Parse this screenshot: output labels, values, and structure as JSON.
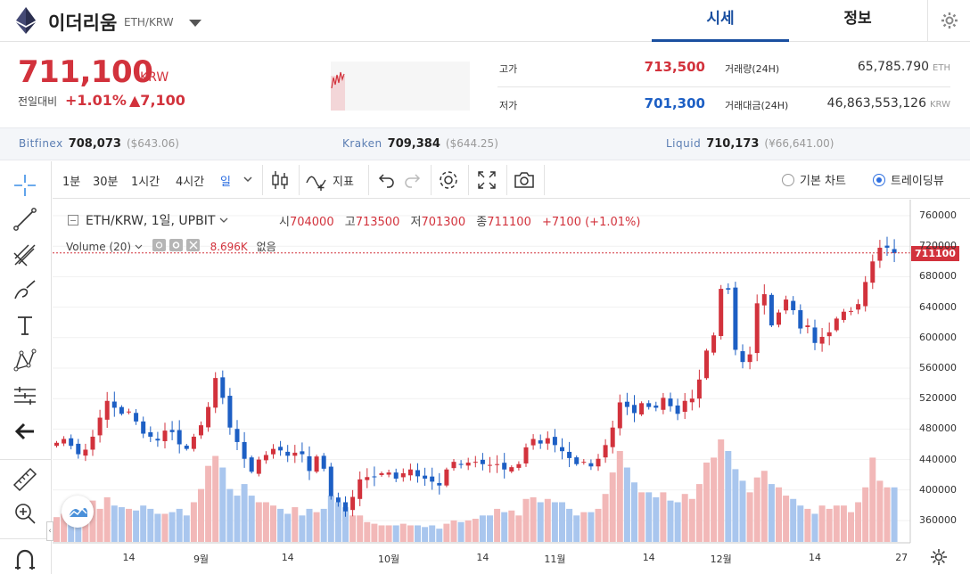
{
  "header": {
    "coin_name": "이더리움",
    "pair": "ETH/KRW",
    "tabs": [
      {
        "label": "시세",
        "active": true
      },
      {
        "label": "정보",
        "active": false
      }
    ]
  },
  "summary": {
    "price": "711,100",
    "unit": "KRW",
    "change_label": "전일대비",
    "change_pct": "+1.01%",
    "change_amount": "▲7,100",
    "high_label": "고가",
    "high": "713,500",
    "low_label": "저가",
    "low": "701,300",
    "volume_label": "거래량(24H)",
    "volume": "65,785.790",
    "volume_unit": "ETH",
    "turnover_label": "거래대금(24H)",
    "turnover": "46,863,553,126",
    "turnover_unit": "KRW"
  },
  "exchanges": [
    {
      "name": "Bitfinex",
      "price": "708,073",
      "fx": "($643.06)"
    },
    {
      "name": "Kraken",
      "price": "709,384",
      "fx": "($644.25)"
    },
    {
      "name": "Liquid",
      "price": "710,173",
      "fx": "(¥66,641.00)"
    }
  ],
  "toolbar": {
    "intervals": [
      "1분",
      "30분",
      "1시간",
      "4시간",
      "일"
    ],
    "active_interval": "일",
    "indicator_label": "지표",
    "chart_mode_basic": "기본 차트",
    "chart_mode_tv": "트레이딩뷰",
    "selected_mode": "트레이딩뷰"
  },
  "legend": {
    "symbol": "ETH/KRW, 1일, UPBIT",
    "o_label": "시",
    "o": "704000",
    "h_label": "고",
    "h": "713500",
    "l_label": "저",
    "l": "701300",
    "c_label": "종",
    "c": "711100",
    "chg": "+7100 (+1.01%)",
    "volume_label": "Volume (20)",
    "volume_value": "8.696K",
    "volume_extra": "없음"
  },
  "colors": {
    "up": "#d2323c",
    "down": "#1d5fc4",
    "vol_up": "#f2b8b8",
    "vol_down": "#a9c6ee"
  },
  "chart_data": {
    "type": "candlestick",
    "last_price_tag": "711100",
    "y_ticks": [
      "760000",
      "720000",
      "680000",
      "640000",
      "600000",
      "560000",
      "520000",
      "480000",
      "440000",
      "400000",
      "360000"
    ],
    "ylim": [
      340000,
      770000
    ],
    "x_ticks": [
      "14",
      "9월",
      "14",
      "10월",
      "14",
      "11월",
      "14",
      "12월",
      "14",
      "27"
    ],
    "x_tick_index": [
      -10,
      0,
      12,
      26,
      39,
      49,
      62,
      72,
      85,
      97
    ],
    "close": [
      462000,
      467000,
      458000,
      447000,
      453000,
      470000,
      495000,
      517000,
      508000,
      500000,
      503000,
      490000,
      474000,
      470000,
      465000,
      478000,
      476000,
      460000,
      454000,
      470000,
      485000,
      509000,
      547000,
      521000,
      482000,
      463000,
      441000,
      424000,
      440000,
      446000,
      454000,
      452000,
      445000,
      449000,
      447000,
      425000,
      444000,
      428000,
      392000,
      384000,
      372000,
      391000,
      414000,
      417000,
      417000,
      422000,
      423000,
      415000,
      422000,
      427000,
      418000,
      415000,
      411000,
      406000,
      427000,
      437000,
      433000,
      436000,
      437000,
      434000,
      433000,
      434000,
      427000,
      430000,
      434000,
      456000,
      467000,
      461000,
      468000,
      459000,
      451000,
      442000,
      434000,
      437000,
      431000,
      441000,
      459000,
      482000,
      515000,
      509000,
      501000,
      514000,
      509000,
      508000,
      521000,
      510000,
      500000,
      517000,
      520000,
      545000,
      583000,
      603000,
      664000,
      663000,
      584000,
      568000,
      578000,
      645000,
      657000,
      616000,
      633000,
      650000,
      636000,
      612000,
      616000,
      593000,
      601000,
      607000,
      625000,
      634000,
      635000,
      644000,
      673000,
      700000,
      718000,
      718000,
      711000
    ],
    "volume_scale": "relative",
    "volumes": [
      0.15,
      0.17,
      0.15,
      0.18,
      0.2,
      0.25,
      0.2,
      0.27,
      0.22,
      0.21,
      0.2,
      0.19,
      0.22,
      0.2,
      0.17,
      0.17,
      0.18,
      0.2,
      0.16,
      0.24,
      0.32,
      0.46,
      0.52,
      0.45,
      0.32,
      0.28,
      0.35,
      0.28,
      0.24,
      0.24,
      0.22,
      0.2,
      0.17,
      0.21,
      0.16,
      0.2,
      0.18,
      0.2,
      0.28,
      0.24,
      0.21,
      0.16,
      0.16,
      0.12,
      0.11,
      0.1,
      0.1,
      0.1,
      0.11,
      0.1,
      0.1,
      0.09,
      0.1,
      0.08,
      0.11,
      0.13,
      0.12,
      0.13,
      0.14,
      0.16,
      0.16,
      0.2,
      0.18,
      0.19,
      0.16,
      0.26,
      0.27,
      0.24,
      0.26,
      0.24,
      0.24,
      0.2,
      0.16,
      0.18,
      0.18,
      0.2,
      0.29,
      0.42,
      0.55,
      0.45,
      0.36,
      0.3,
      0.3,
      0.27,
      0.3,
      0.25,
      0.24,
      0.29,
      0.26,
      0.35,
      0.48,
      0.51,
      0.62,
      0.55,
      0.44,
      0.37,
      0.3,
      0.39,
      0.43,
      0.35,
      0.33,
      0.28,
      0.26,
      0.22,
      0.2,
      0.17,
      0.22,
      0.2,
      0.22,
      0.22,
      0.18,
      0.24,
      0.33,
      0.51,
      0.37,
      0.33,
      0.33
    ]
  }
}
